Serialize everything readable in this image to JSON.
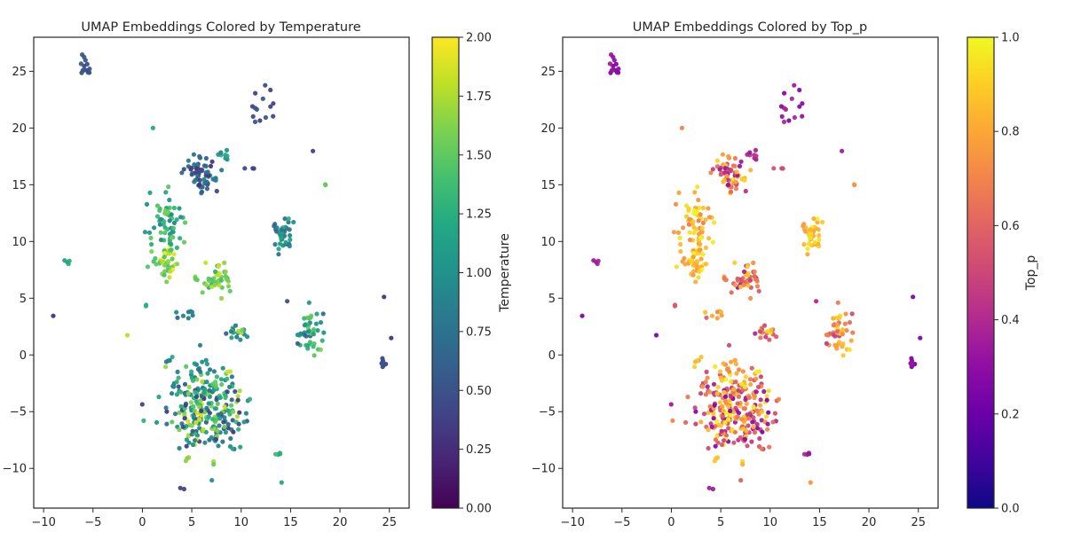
{
  "chart_data": [
    {
      "type": "scatter",
      "title": "UMAP Embeddings Colored by Temperature",
      "xlabel": "",
      "ylabel": "",
      "xlim": [
        -11.0,
        27.0
      ],
      "ylim": [
        -13.5,
        28.0
      ],
      "xticks": [
        -10,
        -5,
        0,
        5,
        10,
        15,
        20,
        25
      ],
      "yticks": [
        -10,
        -5,
        0,
        5,
        10,
        15,
        20,
        25
      ],
      "grid": false,
      "legend": "none",
      "colormap": "viridis",
      "colorbar": {
        "label": "Temperature",
        "range": [
          0.0,
          2.0
        ],
        "ticks": [
          "0.00",
          "0.25",
          "0.50",
          "0.75",
          "1.00",
          "1.25",
          "1.50",
          "1.75",
          "2.00"
        ]
      },
      "clusters": [
        {
          "x": -5.7,
          "y": 25.2,
          "sx": 0.3,
          "sy": 0.6,
          "n": 14,
          "cmin": 0.45,
          "cmax": 0.6
        },
        {
          "x": 12.0,
          "y": 21.8,
          "sx": 0.9,
          "sy": 0.8,
          "n": 14,
          "cmin": 0.35,
          "cmax": 0.55
        },
        {
          "x": 1.1,
          "y": 20.0,
          "sx": 0.05,
          "sy": 0.05,
          "n": 1,
          "cmin": 1.2,
          "cmax": 1.2
        },
        {
          "x": 17.2,
          "y": 18.0,
          "sx": 0.05,
          "sy": 0.05,
          "n": 1,
          "cmin": 0.4,
          "cmax": 0.4
        },
        {
          "x": 18.6,
          "y": 15.0,
          "sx": 0.1,
          "sy": 0.1,
          "n": 2,
          "cmin": 1.5,
          "cmax": 1.6
        },
        {
          "x": 5.8,
          "y": 16.0,
          "sx": 0.8,
          "sy": 0.8,
          "n": 70,
          "cmin": 0.3,
          "cmax": 0.9
        },
        {
          "x": 8.0,
          "y": 17.5,
          "sx": 0.5,
          "sy": 0.4,
          "n": 8,
          "cmin": 0.8,
          "cmax": 1.4
        },
        {
          "x": 10.7,
          "y": 16.5,
          "sx": 0.3,
          "sy": 0.1,
          "n": 3,
          "cmin": 0.4,
          "cmax": 0.6
        },
        {
          "x": 2.5,
          "y": 8.0,
          "sx": 0.5,
          "sy": 0.8,
          "n": 45,
          "cmin": 1.4,
          "cmax": 2.0
        },
        {
          "x": 2.3,
          "y": 11.5,
          "sx": 0.9,
          "sy": 1.3,
          "n": 60,
          "cmin": 0.8,
          "cmax": 1.6
        },
        {
          "x": 7.7,
          "y": 6.6,
          "sx": 0.7,
          "sy": 0.7,
          "n": 45,
          "cmin": 1.2,
          "cmax": 1.9
        },
        {
          "x": 5.5,
          "y": 6.7,
          "sx": 0.2,
          "sy": 0.1,
          "n": 4,
          "cmin": 1.4,
          "cmax": 1.7
        },
        {
          "x": 14.2,
          "y": 10.5,
          "sx": 0.5,
          "sy": 0.7,
          "n": 40,
          "cmin": 0.6,
          "cmax": 1.3
        },
        {
          "x": -7.7,
          "y": 8.1,
          "sx": 0.2,
          "sy": 0.2,
          "n": 4,
          "cmin": 1.0,
          "cmax": 1.3
        },
        {
          "x": 0.3,
          "y": 4.4,
          "sx": 0.1,
          "sy": 0.1,
          "n": 2,
          "cmin": 1.2,
          "cmax": 1.3
        },
        {
          "x": 14.7,
          "y": 4.7,
          "sx": 0.05,
          "sy": 0.05,
          "n": 1,
          "cmin": 0.5,
          "cmax": 0.5
        },
        {
          "x": 4.4,
          "y": 3.5,
          "sx": 0.5,
          "sy": 0.3,
          "n": 8,
          "cmin": 0.6,
          "cmax": 1.0
        },
        {
          "x": 9.6,
          "y": 2.0,
          "sx": 0.5,
          "sy": 0.3,
          "n": 18,
          "cmin": 0.6,
          "cmax": 1.9
        },
        {
          "x": 17.0,
          "y": 1.8,
          "sx": 0.6,
          "sy": 1.1,
          "n": 45,
          "cmin": 0.6,
          "cmax": 1.6
        },
        {
          "x": -9.0,
          "y": 3.4,
          "sx": 0.05,
          "sy": 0.05,
          "n": 1,
          "cmin": 0.3,
          "cmax": 0.3
        },
        {
          "x": -1.5,
          "y": 1.7,
          "sx": 0.05,
          "sy": 0.05,
          "n": 1,
          "cmin": 1.8,
          "cmax": 1.8
        },
        {
          "x": 24.5,
          "y": 5.1,
          "sx": 0.05,
          "sy": 0.05,
          "n": 1,
          "cmin": 0.3,
          "cmax": 0.3
        },
        {
          "x": 25.1,
          "y": 1.6,
          "sx": 0.05,
          "sy": 0.05,
          "n": 1,
          "cmin": 0.3,
          "cmax": 0.3
        },
        {
          "x": 24.4,
          "y": -0.8,
          "sx": 0.15,
          "sy": 0.3,
          "n": 8,
          "cmin": 0.35,
          "cmax": 0.55
        },
        {
          "x": 2.5,
          "y": -0.6,
          "sx": 0.2,
          "sy": 0.1,
          "n": 3,
          "cmin": 0.7,
          "cmax": 1.0
        },
        {
          "x": 6.5,
          "y": -5.0,
          "sx": 2.0,
          "sy": 1.8,
          "n": 260,
          "cmin": 0.3,
          "cmax": 1.9
        },
        {
          "x": 5.5,
          "y": -1.5,
          "sx": 1.0,
          "sy": 0.8,
          "n": 25,
          "cmin": 0.6,
          "cmax": 1.6
        },
        {
          "x": 0.0,
          "y": -4.4,
          "sx": 0.05,
          "sy": 0.05,
          "n": 1,
          "cmin": 0.4,
          "cmax": 0.4
        },
        {
          "x": 4.5,
          "y": -9.0,
          "sx": 0.2,
          "sy": 0.3,
          "n": 4,
          "cmin": 1.5,
          "cmax": 1.8
        },
        {
          "x": 13.8,
          "y": -8.7,
          "sx": 0.3,
          "sy": 0.1,
          "n": 4,
          "cmin": 1.2,
          "cmax": 1.5
        },
        {
          "x": 14.1,
          "y": -11.2,
          "sx": 0.05,
          "sy": 0.05,
          "n": 1,
          "cmin": 1.2,
          "cmax": 1.2
        },
        {
          "x": 4.0,
          "y": -11.7,
          "sx": 0.1,
          "sy": 0.1,
          "n": 2,
          "cmin": 0.4,
          "cmax": 0.5
        }
      ]
    },
    {
      "type": "scatter",
      "title": "UMAP Embeddings Colored by Top_p",
      "xlabel": "",
      "ylabel": "",
      "xlim": [
        -11.0,
        27.0
      ],
      "ylim": [
        -13.5,
        28.0
      ],
      "xticks": [
        -10,
        -5,
        0,
        5,
        10,
        15,
        20,
        25
      ],
      "yticks": [
        -10,
        -5,
        0,
        5,
        10,
        15,
        20,
        25
      ],
      "grid": false,
      "legend": "none",
      "colormap": "plasma",
      "colorbar": {
        "label": "Top_p",
        "range": [
          0.0,
          1.0
        ],
        "ticks": [
          "0.0",
          "0.2",
          "0.4",
          "0.6",
          "0.8",
          "1.0"
        ]
      },
      "clusters": [
        {
          "x": -5.7,
          "y": 25.2,
          "sx": 0.3,
          "sy": 0.6,
          "n": 14,
          "cmin": 0.25,
          "cmax": 0.35
        },
        {
          "x": 12.0,
          "y": 21.8,
          "sx": 0.9,
          "sy": 0.8,
          "n": 14,
          "cmin": 0.25,
          "cmax": 0.4
        },
        {
          "x": 1.1,
          "y": 20.0,
          "sx": 0.05,
          "sy": 0.05,
          "n": 1,
          "cmin": 0.7,
          "cmax": 0.7
        },
        {
          "x": 17.2,
          "y": 18.0,
          "sx": 0.05,
          "sy": 0.05,
          "n": 1,
          "cmin": 0.35,
          "cmax": 0.35
        },
        {
          "x": 18.6,
          "y": 15.0,
          "sx": 0.1,
          "sy": 0.1,
          "n": 2,
          "cmin": 0.75,
          "cmax": 0.8
        },
        {
          "x": 5.8,
          "y": 16.0,
          "sx": 0.8,
          "sy": 0.8,
          "n": 70,
          "cmin": 0.3,
          "cmax": 0.95
        },
        {
          "x": 8.0,
          "y": 17.5,
          "sx": 0.5,
          "sy": 0.4,
          "n": 8,
          "cmin": 0.3,
          "cmax": 0.5
        },
        {
          "x": 10.7,
          "y": 16.5,
          "sx": 0.3,
          "sy": 0.1,
          "n": 3,
          "cmin": 0.5,
          "cmax": 0.7
        },
        {
          "x": 2.5,
          "y": 8.0,
          "sx": 0.5,
          "sy": 0.8,
          "n": 45,
          "cmin": 0.75,
          "cmax": 1.0
        },
        {
          "x": 2.3,
          "y": 11.5,
          "sx": 0.9,
          "sy": 1.3,
          "n": 60,
          "cmin": 0.65,
          "cmax": 1.0
        },
        {
          "x": 7.7,
          "y": 6.6,
          "sx": 0.7,
          "sy": 0.7,
          "n": 45,
          "cmin": 0.3,
          "cmax": 0.95
        },
        {
          "x": 5.5,
          "y": 6.7,
          "sx": 0.2,
          "sy": 0.1,
          "n": 4,
          "cmin": 0.6,
          "cmax": 0.8
        },
        {
          "x": 14.2,
          "y": 10.5,
          "sx": 0.5,
          "sy": 0.7,
          "n": 40,
          "cmin": 0.75,
          "cmax": 1.0
        },
        {
          "x": -7.7,
          "y": 8.1,
          "sx": 0.2,
          "sy": 0.2,
          "n": 4,
          "cmin": 0.3,
          "cmax": 0.4
        },
        {
          "x": 0.3,
          "y": 4.4,
          "sx": 0.1,
          "sy": 0.1,
          "n": 2,
          "cmin": 0.5,
          "cmax": 0.6
        },
        {
          "x": 14.7,
          "y": 4.7,
          "sx": 0.05,
          "sy": 0.05,
          "n": 1,
          "cmin": 0.4,
          "cmax": 0.4
        },
        {
          "x": 4.4,
          "y": 3.5,
          "sx": 0.5,
          "sy": 0.3,
          "n": 8,
          "cmin": 0.55,
          "cmax": 0.9
        },
        {
          "x": 9.6,
          "y": 2.0,
          "sx": 0.5,
          "sy": 0.3,
          "n": 18,
          "cmin": 0.4,
          "cmax": 1.0
        },
        {
          "x": 17.0,
          "y": 1.8,
          "sx": 0.6,
          "sy": 1.1,
          "n": 45,
          "cmin": 0.45,
          "cmax": 0.95
        },
        {
          "x": -9.0,
          "y": 3.4,
          "sx": 0.05,
          "sy": 0.05,
          "n": 1,
          "cmin": 0.25,
          "cmax": 0.25
        },
        {
          "x": -1.5,
          "y": 1.7,
          "sx": 0.05,
          "sy": 0.05,
          "n": 1,
          "cmin": 0.25,
          "cmax": 0.25
        },
        {
          "x": 24.5,
          "y": 5.1,
          "sx": 0.05,
          "sy": 0.05,
          "n": 1,
          "cmin": 0.25,
          "cmax": 0.25
        },
        {
          "x": 25.1,
          "y": 1.6,
          "sx": 0.05,
          "sy": 0.05,
          "n": 1,
          "cmin": 0.25,
          "cmax": 0.25
        },
        {
          "x": 24.4,
          "y": -0.8,
          "sx": 0.15,
          "sy": 0.3,
          "n": 8,
          "cmin": 0.2,
          "cmax": 0.35
        },
        {
          "x": 2.5,
          "y": -0.6,
          "sx": 0.2,
          "sy": 0.1,
          "n": 3,
          "cmin": 0.75,
          "cmax": 0.9
        },
        {
          "x": 6.5,
          "y": -5.0,
          "sx": 2.0,
          "sy": 1.8,
          "n": 260,
          "cmin": 0.25,
          "cmax": 1.0
        },
        {
          "x": 5.5,
          "y": -1.5,
          "sx": 1.0,
          "sy": 0.8,
          "n": 25,
          "cmin": 0.65,
          "cmax": 1.0
        },
        {
          "x": 0.0,
          "y": -4.4,
          "sx": 0.05,
          "sy": 0.05,
          "n": 1,
          "cmin": 0.35,
          "cmax": 0.35
        },
        {
          "x": 4.5,
          "y": -9.0,
          "sx": 0.2,
          "sy": 0.3,
          "n": 4,
          "cmin": 0.8,
          "cmax": 0.95
        },
        {
          "x": 13.8,
          "y": -8.7,
          "sx": 0.3,
          "sy": 0.1,
          "n": 4,
          "cmin": 0.3,
          "cmax": 0.45
        },
        {
          "x": 14.1,
          "y": -11.2,
          "sx": 0.05,
          "sy": 0.05,
          "n": 1,
          "cmin": 0.75,
          "cmax": 0.75
        },
        {
          "x": 4.0,
          "y": -11.7,
          "sx": 0.1,
          "sy": 0.1,
          "n": 2,
          "cmin": 0.35,
          "cmax": 0.45
        }
      ]
    }
  ]
}
